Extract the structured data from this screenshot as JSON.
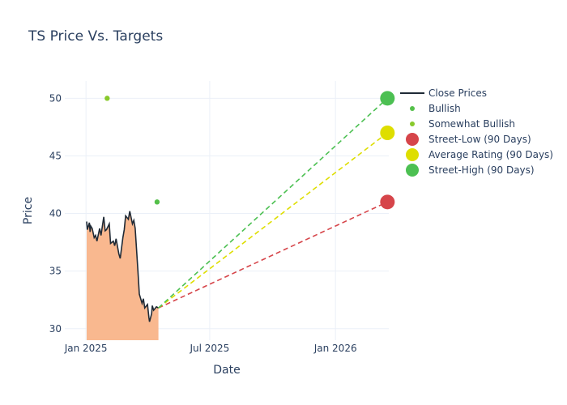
{
  "chart_data": {
    "type": "line",
    "title": "TS Price Vs. Targets",
    "xlabel": "Date",
    "ylabel": "Price",
    "x_ticks": [
      "Jan 2025",
      "Jul 2025",
      "Jan 2026"
    ],
    "y_ticks": [
      30,
      35,
      40,
      45,
      50
    ],
    "ylim": [
      29,
      51.5
    ],
    "xlim": [
      "2024-12-01",
      "2026-03-20"
    ],
    "grid": true,
    "legend_position": "right",
    "close_prices": {
      "name": "Close Prices",
      "color": "#1f2a36",
      "fill_color": "#f9b88f",
      "x": [
        "2025-01-02",
        "2025-01-03",
        "2025-01-06",
        "2025-01-07",
        "2025-01-08",
        "2025-01-10",
        "2025-01-13",
        "2025-01-15",
        "2025-01-17",
        "2025-01-21",
        "2025-01-23",
        "2025-01-27",
        "2025-01-29",
        "2025-01-31",
        "2025-02-04",
        "2025-02-06",
        "2025-02-10",
        "2025-02-12",
        "2025-02-14",
        "2025-02-18",
        "2025-02-20",
        "2025-02-24",
        "2025-02-26",
        "2025-02-28",
        "2025-03-04",
        "2025-03-06",
        "2025-03-10",
        "2025-03-12",
        "2025-03-14",
        "2025-03-18",
        "2025-03-20",
        "2025-03-24",
        "2025-03-26",
        "2025-03-28",
        "2025-04-01",
        "2025-04-03",
        "2025-04-04",
        "2025-04-07",
        "2025-04-08",
        "2025-04-10",
        "2025-04-14",
        "2025-04-17"
      ],
      "y": [
        39.3,
        38.6,
        39.2,
        38.4,
        38.9,
        38.7,
        37.9,
        38.1,
        37.6,
        38.7,
        38.1,
        39.7,
        38.5,
        38.6,
        39.1,
        37.4,
        37.6,
        37.2,
        37.8,
        36.5,
        36.1,
        37.9,
        38.6,
        39.8,
        39.5,
        40.2,
        39.1,
        39.4,
        38.7,
        35.0,
        33.0,
        32.2,
        32.6,
        31.8,
        32.1,
        31.0,
        30.6,
        31.3,
        32.0,
        31.6,
        31.9,
        31.8
      ]
    },
    "bullish": {
      "name": "Bullish",
      "color": "#54c04a",
      "points": [
        {
          "x": "2025-04-15",
          "y": 41
        }
      ]
    },
    "somewhat_bullish": {
      "name": "Somewhat Bullish",
      "color": "#88c92b",
      "points": [
        {
          "x": "2025-02-01",
          "y": 50
        }
      ]
    },
    "targets": [
      {
        "name": "Street-Low (90 Days)",
        "color": "#d6454a",
        "from": {
          "x": "2025-04-17",
          "y": 31.8
        },
        "to": {
          "x": "2026-03-18",
          "y": 41
        }
      },
      {
        "name": "Average Rating (90 Days)",
        "color": "#dede00",
        "from": {
          "x": "2025-04-17",
          "y": 31.8
        },
        "to": {
          "x": "2026-03-18",
          "y": 47
        }
      },
      {
        "name": "Street-High (90 Days)",
        "color": "#4cc052",
        "from": {
          "x": "2025-04-17",
          "y": 31.8
        },
        "to": {
          "x": "2026-03-18",
          "y": 50
        }
      }
    ]
  }
}
